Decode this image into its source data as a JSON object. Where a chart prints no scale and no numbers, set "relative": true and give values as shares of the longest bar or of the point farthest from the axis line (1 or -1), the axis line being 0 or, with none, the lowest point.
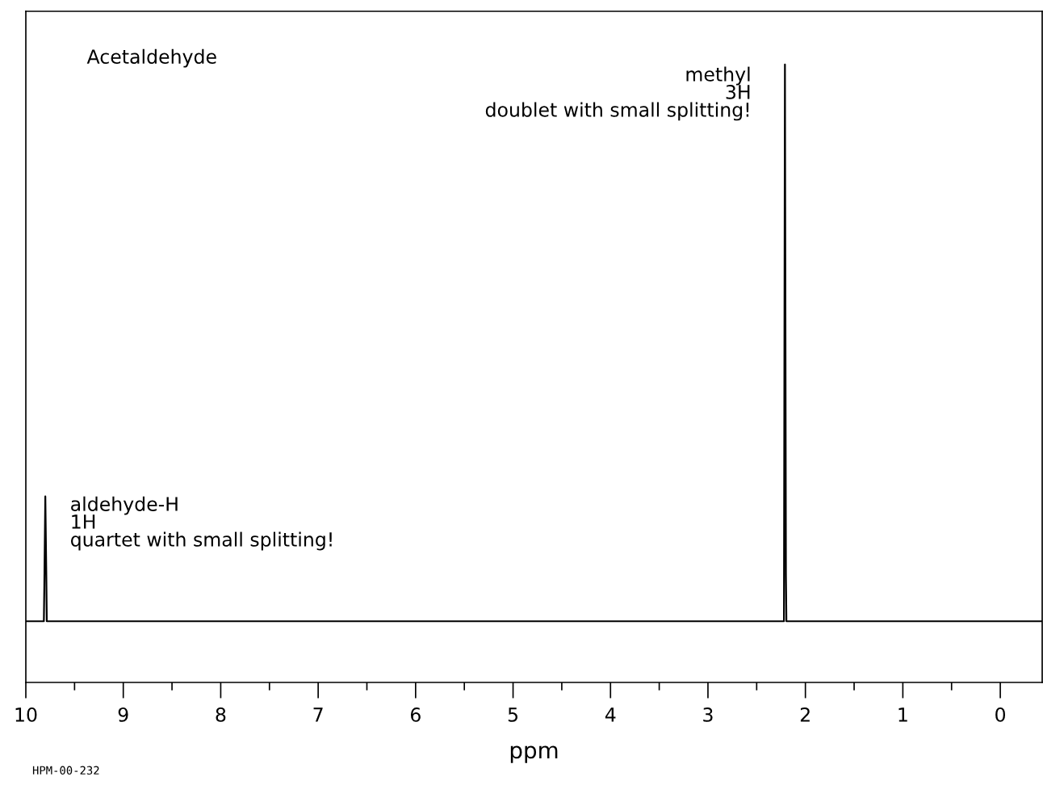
{
  "chart_data": {
    "type": "line",
    "title": "Acetaldehyde",
    "xlabel": "ppm",
    "relative": true,
    "x": [
      10,
      9.815,
      9.81,
      9.8,
      9.79,
      9.785,
      2.22,
      2.21,
      2.2,
      2.195,
      -0.43
    ],
    "series": [
      {
        "color": "#000000",
        "values": [
          0.099,
          0.099,
          0.157,
          0.301,
          0.174,
          0.099,
          0.099,
          1.0,
          0.174,
          0.099,
          0.099
        ]
      }
    ],
    "xlim": [
      10,
      -0.43
    ],
    "xticks": [
      10,
      {
        "value": 9.5,
        "label": null
      },
      9,
      {
        "value": 8.5,
        "label": null
      },
      8,
      {
        "value": 7.5,
        "label": null
      },
      7,
      {
        "value": 6.5,
        "label": null
      },
      6,
      {
        "value": 5.5,
        "label": null
      },
      5,
      {
        "value": 4.5,
        "label": null
      },
      4,
      {
        "value": 3.5,
        "label": null
      },
      3,
      {
        "value": 2.5,
        "label": null
      },
      2,
      {
        "value": 1.5,
        "label": null
      },
      1,
      {
        "value": 0.5,
        "label": null
      },
      0
    ],
    "tick_labels": "x",
    "grid": false,
    "marker": "none",
    "line_style": "solid",
    "annotations": [
      {
        "text": "aldehyde-H\n1H\nquartet with small splitting!",
        "x": 9.8,
        "y": 0.301
      },
      {
        "text": "methyl\n3H\ndoublet with small splitting!",
        "x": 2.21,
        "y": 1.0
      },
      "HPM-00-232"
    ]
  }
}
